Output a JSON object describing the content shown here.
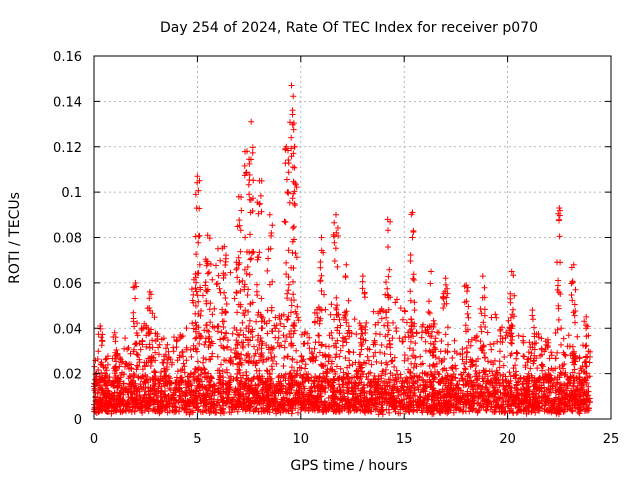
{
  "chart_data": {
    "type": "scatter",
    "title": "Day 254 of 2024, Rate Of TEC Index for receiver p070",
    "xlabel": "GPS time / hours",
    "ylabel": "ROTI / TECUs",
    "xlim": [
      0,
      25
    ],
    "ylim": [
      0,
      0.16
    ],
    "xticks": [
      0,
      5,
      10,
      15,
      20,
      25
    ],
    "yticks": [
      0,
      0.02,
      0.04,
      0.06,
      0.08,
      0.1,
      0.12,
      0.14,
      0.16
    ],
    "xtick_labels": [
      "0",
      "5",
      "10",
      "15",
      "20",
      "25"
    ],
    "ytick_labels": [
      "0",
      "0.02",
      "0.04",
      "0.06",
      "0.08",
      "0.1",
      "0.12",
      "0.14",
      "0.16"
    ],
    "grid": true,
    "marker": "+",
    "color": "#ff0000",
    "peaks": [
      {
        "x": 0.3,
        "y": 0.041
      },
      {
        "x": 1.0,
        "y": 0.038
      },
      {
        "x": 2.0,
        "y": 0.06
      },
      {
        "x": 2.7,
        "y": 0.056
      },
      {
        "x": 5.0,
        "y": 0.107
      },
      {
        "x": 5.5,
        "y": 0.081
      },
      {
        "x": 6.3,
        "y": 0.076
      },
      {
        "x": 7.0,
        "y": 0.098
      },
      {
        "x": 7.4,
        "y": 0.118
      },
      {
        "x": 7.6,
        "y": 0.131
      },
      {
        "x": 8.0,
        "y": 0.105
      },
      {
        "x": 8.5,
        "y": 0.09
      },
      {
        "x": 9.3,
        "y": 0.12
      },
      {
        "x": 9.55,
        "y": 0.147
      },
      {
        "x": 9.7,
        "y": 0.12
      },
      {
        "x": 11.0,
        "y": 0.08
      },
      {
        "x": 11.7,
        "y": 0.09
      },
      {
        "x": 12.2,
        "y": 0.068
      },
      {
        "x": 13.0,
        "y": 0.063
      },
      {
        "x": 14.2,
        "y": 0.088
      },
      {
        "x": 15.4,
        "y": 0.091
      },
      {
        "x": 16.3,
        "y": 0.065
      },
      {
        "x": 17.0,
        "y": 0.062
      },
      {
        "x": 18.0,
        "y": 0.059
      },
      {
        "x": 18.8,
        "y": 0.063
      },
      {
        "x": 20.2,
        "y": 0.065
      },
      {
        "x": 21.2,
        "y": 0.048
      },
      {
        "x": 22.5,
        "y": 0.093
      },
      {
        "x": 23.2,
        "y": 0.068
      },
      {
        "x": 23.8,
        "y": 0.045
      }
    ]
  }
}
